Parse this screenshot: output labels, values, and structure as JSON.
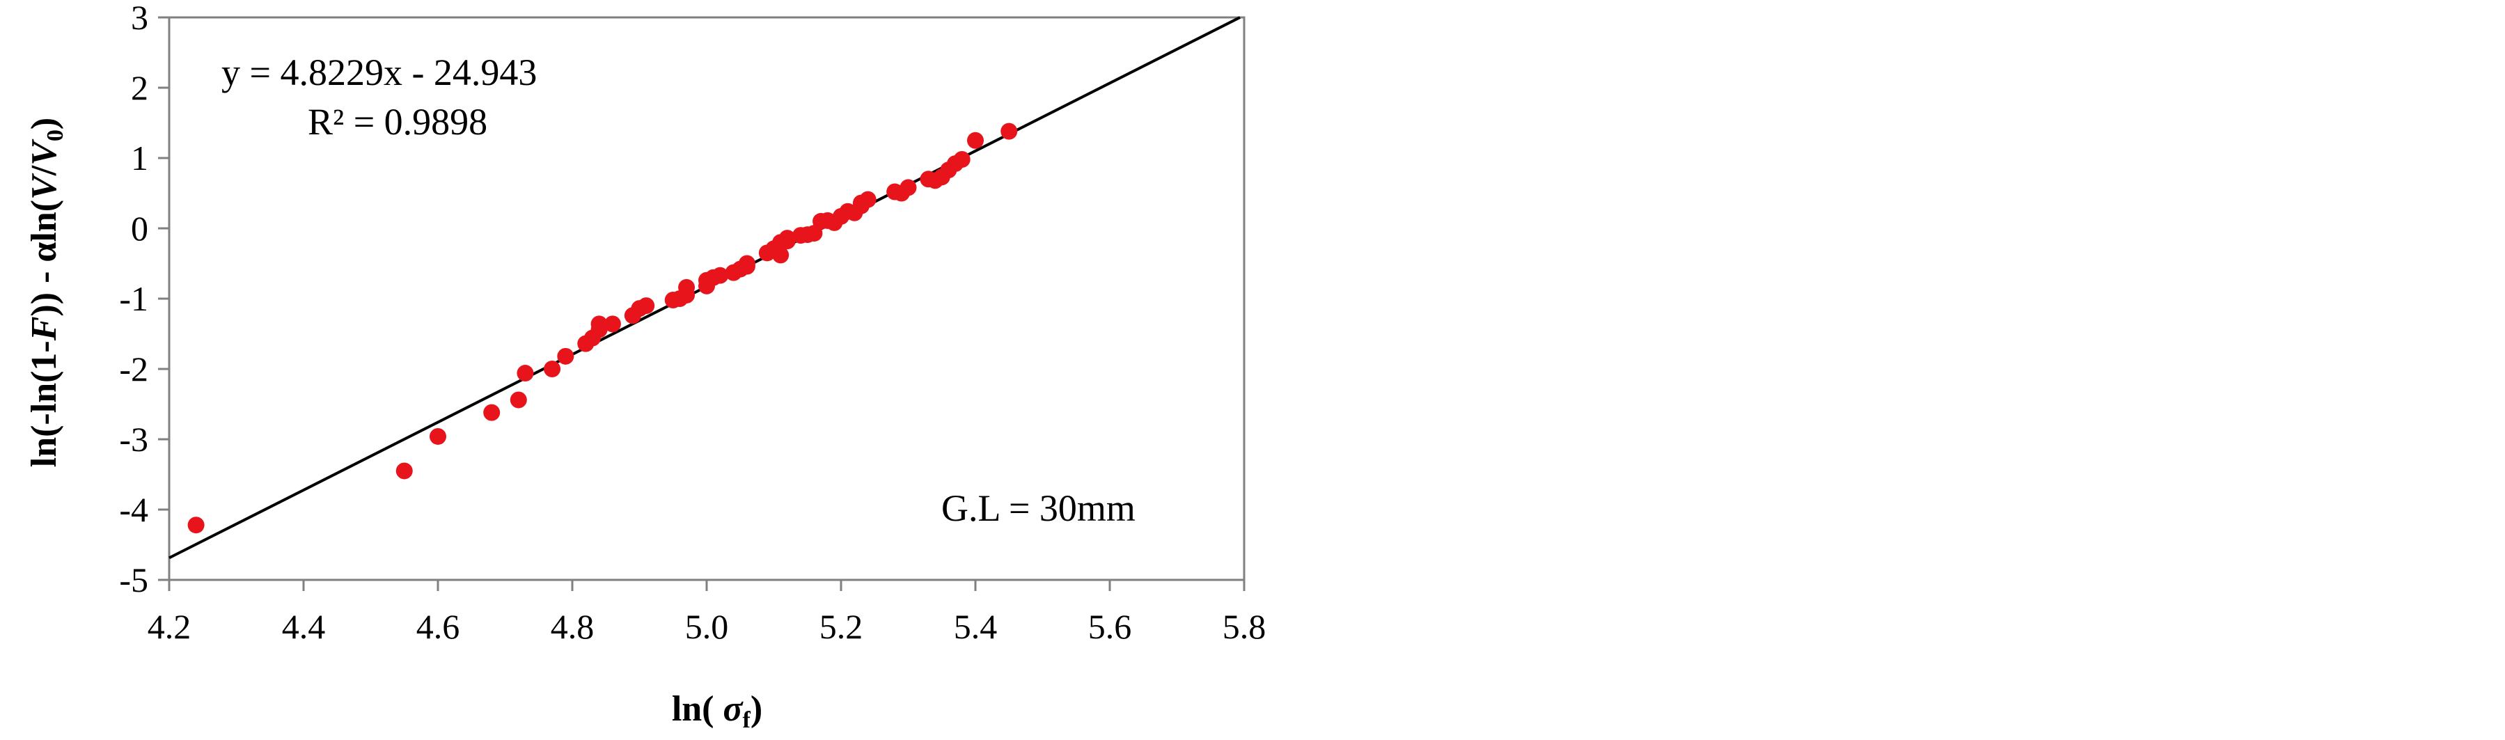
{
  "chart_data": {
    "type": "scatter",
    "title": "",
    "xlabel": "ln( σf)",
    "ylabel": "ln(-ln(1-F)) - αln(V/V0)",
    "xlim": [
      4.2,
      5.8
    ],
    "ylim": [
      -5,
      3
    ],
    "x_ticks": [
      "4.2",
      "4.4",
      "4.6",
      "4.8",
      "5.0",
      "5.2",
      "5.4",
      "5.6",
      "5.8"
    ],
    "y_ticks": [
      "3",
      "2",
      "1",
      "0",
      "-1",
      "-2",
      "-3",
      "-4",
      "-5"
    ],
    "grid": false,
    "legend": "none",
    "colors": {
      "points": "#e8141b",
      "trendline": "#000000",
      "frame": "#808080"
    },
    "trendline": {
      "slope": 4.8229,
      "intercept": -24.943,
      "equation_label": "y = 4.8229x - 24.943",
      "r2_label": "R² = 0.9898"
    },
    "annotation": "G.L = 30mm",
    "points": [
      [
        4.24,
        -4.22
      ],
      [
        4.55,
        -3.45
      ],
      [
        4.6,
        -2.96
      ],
      [
        4.68,
        -2.62
      ],
      [
        4.72,
        -2.44
      ],
      [
        4.73,
        -2.06
      ],
      [
        4.77,
        -2.0
      ],
      [
        4.79,
        -1.82
      ],
      [
        4.82,
        -1.64
      ],
      [
        4.83,
        -1.56
      ],
      [
        4.84,
        -1.44
      ],
      [
        4.84,
        -1.36
      ],
      [
        4.86,
        -1.36
      ],
      [
        4.89,
        -1.24
      ],
      [
        4.9,
        -1.14
      ],
      [
        4.91,
        -1.1
      ],
      [
        4.95,
        -1.02
      ],
      [
        4.96,
        -1.0
      ],
      [
        4.97,
        -0.95
      ],
      [
        4.97,
        -0.84
      ],
      [
        5.0,
        -0.82
      ],
      [
        5.0,
        -0.74
      ],
      [
        5.01,
        -0.7
      ],
      [
        5.02,
        -0.67
      ],
      [
        5.04,
        -0.63
      ],
      [
        5.05,
        -0.58
      ],
      [
        5.06,
        -0.54
      ],
      [
        5.06,
        -0.5
      ],
      [
        5.09,
        -0.35
      ],
      [
        5.1,
        -0.29
      ],
      [
        5.11,
        -0.38
      ],
      [
        5.11,
        -0.2
      ],
      [
        5.12,
        -0.18
      ],
      [
        5.12,
        -0.14
      ],
      [
        5.14,
        -0.1
      ],
      [
        5.15,
        -0.09
      ],
      [
        5.16,
        -0.07
      ],
      [
        5.17,
        0.1
      ],
      [
        5.18,
        0.11
      ],
      [
        5.19,
        0.08
      ],
      [
        5.2,
        0.17
      ],
      [
        5.21,
        0.24
      ],
      [
        5.22,
        0.22
      ],
      [
        5.23,
        0.32
      ],
      [
        5.23,
        0.36
      ],
      [
        5.24,
        0.41
      ],
      [
        5.28,
        0.52
      ],
      [
        5.29,
        0.5
      ],
      [
        5.3,
        0.58
      ],
      [
        5.33,
        0.7
      ],
      [
        5.34,
        0.68
      ],
      [
        5.35,
        0.73
      ],
      [
        5.36,
        0.83
      ],
      [
        5.37,
        0.92
      ],
      [
        5.38,
        0.98
      ],
      [
        5.4,
        1.25
      ],
      [
        5.45,
        1.38
      ]
    ]
  }
}
